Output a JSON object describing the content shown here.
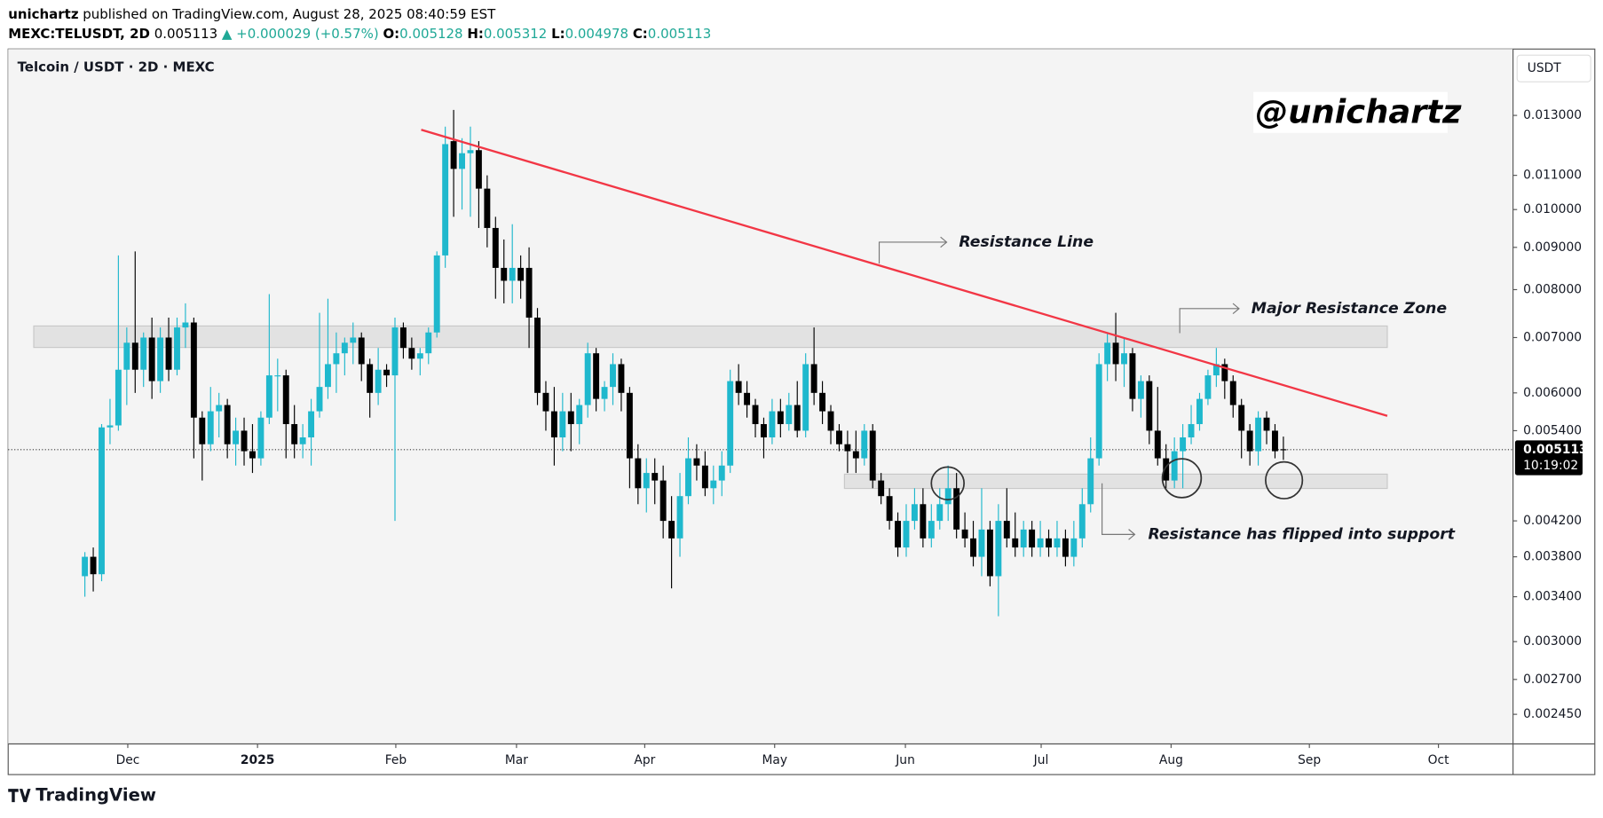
{
  "header": {
    "author": "unichartz",
    "published": "published on TradingView.com, August 28, 2025 08:40:59 EST",
    "symbol": "MEXC:TELUSDT, 2D",
    "change": "▲ +0.000029 (+0.57%)",
    "o_label": "O:",
    "h_label": "H:",
    "l_label": "L:",
    "c_label": "C:"
  },
  "footer": {
    "brand": "TradingView"
  },
  "chart_data": {
    "type": "candlestick",
    "title": "Telcoin / USDT · 2D · MEXC",
    "currency": "USDT",
    "watermark": "@unichartz",
    "countdown": "10:19:02",
    "log_scale": true,
    "up_color": "#1fb8cd",
    "down_color": "#000000",
    "annotations": [
      "Resistance Line",
      "Major Resistance Zone",
      "Resistance has flipped into support"
    ],
    "ylim": [
      0.002256,
      0.01564
    ],
    "yticks": [
      {
        "value": 0.013,
        "label": "0.013000"
      },
      {
        "value": 0.011,
        "label": "0.011000"
      },
      {
        "value": 0.01,
        "label": "0.010000"
      },
      {
        "value": 0.009,
        "label": "0.009000"
      },
      {
        "value": 0.008,
        "label": "0.008000"
      },
      {
        "value": 0.007,
        "label": "0.007000"
      },
      {
        "value": 0.006,
        "label": "0.006000"
      },
      {
        "value": 0.0054,
        "label": "0.005400"
      },
      {
        "value": 0.0042,
        "label": "0.004200"
      },
      {
        "value": 0.0038,
        "label": "0.003800"
      },
      {
        "value": 0.0034,
        "label": "0.003400"
      },
      {
        "value": 0.003,
        "label": "0.003000"
      },
      {
        "value": 0.0027,
        "label": "0.002700"
      },
      {
        "value": 0.00245,
        "label": "0.002450"
      }
    ],
    "xlim": [
      -9.15,
      170.4
    ],
    "xticks": [
      {
        "value": 5.12,
        "label": "Dec"
      },
      {
        "value": 20.6,
        "label": "2025"
      },
      {
        "value": 37.1,
        "label": "Feb"
      },
      {
        "value": 51.5,
        "label": "Mar"
      },
      {
        "value": 66.8,
        "label": "Apr"
      },
      {
        "value": 82.3,
        "label": "May"
      },
      {
        "value": 97.9,
        "label": "Jun"
      },
      {
        "value": 114.1,
        "label": "Jul"
      },
      {
        "value": 129.6,
        "label": "Aug"
      },
      {
        "value": 146.1,
        "label": "Sep"
      },
      {
        "value": 161.5,
        "label": "Oct"
      }
    ],
    "candles": [
      [
        0.0036,
        0.00385,
        0.0034,
        0.0038
      ],
      [
        0.0038,
        0.0039,
        0.00345,
        0.00362
      ],
      [
        0.00362,
        0.0055,
        0.00355,
        0.00545
      ],
      [
        0.00545,
        0.0059,
        0.0052,
        0.00548
      ],
      [
        0.00548,
        0.0088,
        0.0054,
        0.0064
      ],
      [
        0.0064,
        0.0072,
        0.0058,
        0.0069
      ],
      [
        0.0069,
        0.0089,
        0.006,
        0.0064
      ],
      [
        0.0064,
        0.0071,
        0.0061,
        0.007
      ],
      [
        0.007,
        0.0074,
        0.0059,
        0.0062
      ],
      [
        0.0062,
        0.0072,
        0.006,
        0.007
      ],
      [
        0.007,
        0.0074,
        0.0062,
        0.0064
      ],
      [
        0.0064,
        0.0074,
        0.0063,
        0.0072
      ],
      [
        0.0072,
        0.0077,
        0.0068,
        0.0073
      ],
      [
        0.0073,
        0.0074,
        0.005,
        0.0056
      ],
      [
        0.0056,
        0.0057,
        0.0047,
        0.0052
      ],
      [
        0.0052,
        0.0061,
        0.0051,
        0.0057
      ],
      [
        0.0057,
        0.006,
        0.0053,
        0.0058
      ],
      [
        0.0058,
        0.0059,
        0.005,
        0.0052
      ],
      [
        0.0052,
        0.0056,
        0.0049,
        0.0054
      ],
      [
        0.0054,
        0.0056,
        0.0049,
        0.0051
      ],
      [
        0.0051,
        0.0055,
        0.0048,
        0.005
      ],
      [
        0.005,
        0.0057,
        0.0049,
        0.0056
      ],
      [
        0.0056,
        0.0079,
        0.0055,
        0.0063
      ],
      [
        0.0063,
        0.0066,
        0.0057,
        0.0063
      ],
      [
        0.0063,
        0.0064,
        0.005,
        0.0055
      ],
      [
        0.0055,
        0.0058,
        0.005,
        0.0052
      ],
      [
        0.0052,
        0.0055,
        0.005,
        0.0053
      ],
      [
        0.0053,
        0.0059,
        0.0049,
        0.0057
      ],
      [
        0.0057,
        0.0075,
        0.0056,
        0.0061
      ],
      [
        0.0061,
        0.0078,
        0.0059,
        0.0065
      ],
      [
        0.0065,
        0.0071,
        0.006,
        0.0067
      ],
      [
        0.0067,
        0.007,
        0.0063,
        0.0069
      ],
      [
        0.0069,
        0.0073,
        0.0065,
        0.007
      ],
      [
        0.007,
        0.0071,
        0.0062,
        0.0065
      ],
      [
        0.0065,
        0.0066,
        0.0056,
        0.006
      ],
      [
        0.006,
        0.0068,
        0.0058,
        0.0064
      ],
      [
        0.0064,
        0.0065,
        0.0061,
        0.0063
      ],
      [
        0.0063,
        0.0074,
        0.0042,
        0.0072
      ],
      [
        0.0072,
        0.0073,
        0.0066,
        0.0068
      ],
      [
        0.0068,
        0.007,
        0.0064,
        0.0066
      ],
      [
        0.0066,
        0.0068,
        0.0063,
        0.0067
      ],
      [
        0.0067,
        0.0072,
        0.0065,
        0.0071
      ],
      [
        0.0071,
        0.0089,
        0.007,
        0.0088
      ],
      [
        0.0088,
        0.0126,
        0.0085,
        0.012
      ],
      [
        0.0121,
        0.0132,
        0.0098,
        0.0112
      ],
      [
        0.0112,
        0.0122,
        0.01,
        0.0117
      ],
      [
        0.0117,
        0.0126,
        0.0098,
        0.0118
      ],
      [
        0.0118,
        0.0121,
        0.0095,
        0.0106
      ],
      [
        0.0106,
        0.011,
        0.009,
        0.0095
      ],
      [
        0.0095,
        0.0098,
        0.0078,
        0.0085
      ],
      [
        0.0085,
        0.0092,
        0.0077,
        0.0082
      ],
      [
        0.0082,
        0.0096,
        0.0077,
        0.0085
      ],
      [
        0.0085,
        0.0088,
        0.0078,
        0.0082
      ],
      [
        0.0085,
        0.009,
        0.0068,
        0.0074
      ],
      [
        0.0074,
        0.0076,
        0.0058,
        0.006
      ],
      [
        0.006,
        0.0062,
        0.0054,
        0.0057
      ],
      [
        0.0057,
        0.0061,
        0.0049,
        0.0053
      ],
      [
        0.0053,
        0.006,
        0.0051,
        0.0057
      ],
      [
        0.0057,
        0.006,
        0.0051,
        0.0055
      ],
      [
        0.0055,
        0.0059,
        0.0052,
        0.0058
      ],
      [
        0.0058,
        0.0069,
        0.0056,
        0.0067
      ],
      [
        0.0067,
        0.0068,
        0.0057,
        0.0059
      ],
      [
        0.0059,
        0.0062,
        0.0057,
        0.0061
      ],
      [
        0.0061,
        0.0067,
        0.0058,
        0.0065
      ],
      [
        0.0065,
        0.0066,
        0.0057,
        0.006
      ],
      [
        0.006,
        0.0061,
        0.0046,
        0.005
      ],
      [
        0.005,
        0.0052,
        0.0044,
        0.0046
      ],
      [
        0.0046,
        0.005,
        0.0043,
        0.0048
      ],
      [
        0.0048,
        0.005,
        0.0044,
        0.0047
      ],
      [
        0.0047,
        0.0049,
        0.004,
        0.0042
      ],
      [
        0.0042,
        0.0045,
        0.00348,
        0.004
      ],
      [
        0.004,
        0.0048,
        0.0038,
        0.0045
      ],
      [
        0.0045,
        0.0053,
        0.0044,
        0.005
      ],
      [
        0.005,
        0.0052,
        0.0047,
        0.0049
      ],
      [
        0.0049,
        0.0051,
        0.0045,
        0.0046
      ],
      [
        0.0046,
        0.0049,
        0.0044,
        0.0047
      ],
      [
        0.0047,
        0.0051,
        0.0045,
        0.0049
      ],
      [
        0.0049,
        0.0064,
        0.0048,
        0.0062
      ],
      [
        0.0062,
        0.0065,
        0.0058,
        0.006
      ],
      [
        0.006,
        0.0062,
        0.0056,
        0.0058
      ],
      [
        0.0058,
        0.0059,
        0.0053,
        0.0055
      ],
      [
        0.0055,
        0.0056,
        0.005,
        0.0053
      ],
      [
        0.0053,
        0.0059,
        0.0052,
        0.0057
      ],
      [
        0.0057,
        0.0059,
        0.0053,
        0.0055
      ],
      [
        0.0055,
        0.006,
        0.0054,
        0.0058
      ],
      [
        0.0058,
        0.0062,
        0.0053,
        0.0054
      ],
      [
        0.0054,
        0.0067,
        0.0053,
        0.0065
      ],
      [
        0.0065,
        0.0072,
        0.0058,
        0.006
      ],
      [
        0.006,
        0.0062,
        0.0055,
        0.0057
      ],
      [
        0.0057,
        0.0058,
        0.0052,
        0.0054
      ],
      [
        0.0054,
        0.0055,
        0.0051,
        0.0052
      ],
      [
        0.0052,
        0.0054,
        0.0048,
        0.0051
      ],
      [
        0.0051,
        0.0054,
        0.0048,
        0.005
      ],
      [
        0.005,
        0.0055,
        0.0049,
        0.0054
      ],
      [
        0.0054,
        0.0055,
        0.0046,
        0.0047
      ],
      [
        0.0047,
        0.0048,
        0.0044,
        0.0045
      ],
      [
        0.0045,
        0.0046,
        0.0041,
        0.0042
      ],
      [
        0.0042,
        0.0043,
        0.0038,
        0.0039
      ],
      [
        0.0039,
        0.0044,
        0.0038,
        0.0042
      ],
      [
        0.0042,
        0.0046,
        0.0041,
        0.0044
      ],
      [
        0.0044,
        0.0046,
        0.0039,
        0.004
      ],
      [
        0.004,
        0.0044,
        0.0039,
        0.0042
      ],
      [
        0.0042,
        0.0046,
        0.0041,
        0.0044
      ],
      [
        0.0044,
        0.0049,
        0.0042,
        0.0046
      ],
      [
        0.0046,
        0.0048,
        0.004,
        0.0041
      ],
      [
        0.0041,
        0.0043,
        0.0039,
        0.004
      ],
      [
        0.004,
        0.0042,
        0.0037,
        0.0038
      ],
      [
        0.0038,
        0.0046,
        0.0036,
        0.0041
      ],
      [
        0.0041,
        0.0042,
        0.0035,
        0.0036
      ],
      [
        0.0036,
        0.0044,
        0.00322,
        0.0042
      ],
      [
        0.0042,
        0.0046,
        0.0039,
        0.004
      ],
      [
        0.004,
        0.0043,
        0.0038,
        0.0039
      ],
      [
        0.0039,
        0.0042,
        0.0038,
        0.0041
      ],
      [
        0.0041,
        0.0042,
        0.0038,
        0.0039
      ],
      [
        0.0039,
        0.0042,
        0.0038,
        0.004
      ],
      [
        0.004,
        0.0041,
        0.0038,
        0.0039
      ],
      [
        0.0039,
        0.0042,
        0.0038,
        0.004
      ],
      [
        0.004,
        0.0041,
        0.0037,
        0.0038
      ],
      [
        0.0038,
        0.0042,
        0.0037,
        0.004
      ],
      [
        0.004,
        0.0046,
        0.0039,
        0.0044
      ],
      [
        0.0044,
        0.0053,
        0.0043,
        0.005
      ],
      [
        0.005,
        0.0067,
        0.0049,
        0.0065
      ],
      [
        0.0065,
        0.0071,
        0.0062,
        0.0069
      ],
      [
        0.0069,
        0.0075,
        0.0062,
        0.0065
      ],
      [
        0.0065,
        0.007,
        0.0061,
        0.0067
      ],
      [
        0.0067,
        0.0068,
        0.0057,
        0.0059
      ],
      [
        0.0059,
        0.0063,
        0.0056,
        0.0062
      ],
      [
        0.0062,
        0.0063,
        0.0052,
        0.0054
      ],
      [
        0.0054,
        0.0061,
        0.0049,
        0.005
      ],
      [
        0.005,
        0.0052,
        0.0046,
        0.0047
      ],
      [
        0.0047,
        0.0053,
        0.0046,
        0.0051
      ],
      [
        0.0051,
        0.0055,
        0.0046,
        0.0053
      ],
      [
        0.0053,
        0.0058,
        0.0052,
        0.0055
      ],
      [
        0.0055,
        0.006,
        0.0054,
        0.0059
      ],
      [
        0.0059,
        0.0064,
        0.0058,
        0.0063
      ],
      [
        0.0063,
        0.0068,
        0.0061,
        0.0065
      ],
      [
        0.0065,
        0.0066,
        0.0059,
        0.0062
      ],
      [
        0.0062,
        0.0063,
        0.0056,
        0.0058
      ],
      [
        0.0058,
        0.0059,
        0.005,
        0.0054
      ],
      [
        0.0054,
        0.0055,
        0.0049,
        0.0051
      ],
      [
        0.0051,
        0.0057,
        0.0049,
        0.0056
      ],
      [
        0.0056,
        0.0057,
        0.0052,
        0.0054
      ],
      [
        0.0054,
        0.0055,
        0.005,
        0.0051
      ],
      [
        0.005128,
        0.005312,
        0.004978,
        0.005113
      ]
    ]
  }
}
